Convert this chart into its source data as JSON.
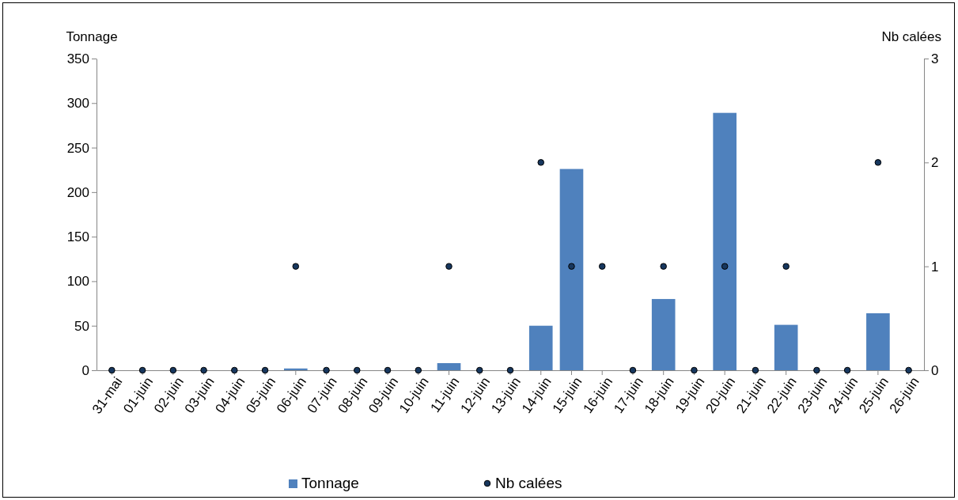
{
  "chart_data": {
    "type": "bar",
    "ylabel": "Tonnage",
    "y2label": "Nb calées",
    "categories": [
      "31-mai",
      "01-juin",
      "02-juin",
      "03-juin",
      "04-juin",
      "05-juin",
      "06-juin",
      "07-juin",
      "08-juin",
      "09-juin",
      "10-juin",
      "11-juin",
      "12-juin",
      "13-juin",
      "14-juin",
      "15-juin",
      "16-juin",
      "17-juin",
      "18-juin",
      "19-juin",
      "20-juin",
      "21-juin",
      "22-juin",
      "23-juin",
      "24-juin",
      "25-juin",
      "26-juin"
    ],
    "series": [
      {
        "name": "Tonnage",
        "type": "bar",
        "color": "#4f81bd",
        "values": [
          0,
          0,
          0,
          0,
          0,
          0,
          2,
          0,
          0,
          0,
          0,
          8,
          0,
          0,
          50,
          226,
          0,
          0,
          80,
          0,
          289,
          0,
          51,
          0,
          0,
          64,
          0
        ]
      },
      {
        "name": "Nb calées",
        "type": "scatter",
        "axis": "y2",
        "color": "#17375e",
        "marker": "circle",
        "values": [
          0,
          0,
          0,
          0,
          0,
          0,
          1,
          0,
          0,
          0,
          0,
          1,
          0,
          0,
          2,
          1,
          1,
          0,
          1,
          0,
          1,
          0,
          1,
          0,
          0,
          2,
          0
        ]
      }
    ],
    "ylim": [
      0,
      350
    ],
    "yticks": [
      0,
      50,
      100,
      150,
      200,
      250,
      300,
      350
    ],
    "y2lim": [
      0,
      3
    ],
    "y2ticks": [
      0,
      1,
      2,
      3
    ],
    "legend": "bottom",
    "grid": false
  }
}
